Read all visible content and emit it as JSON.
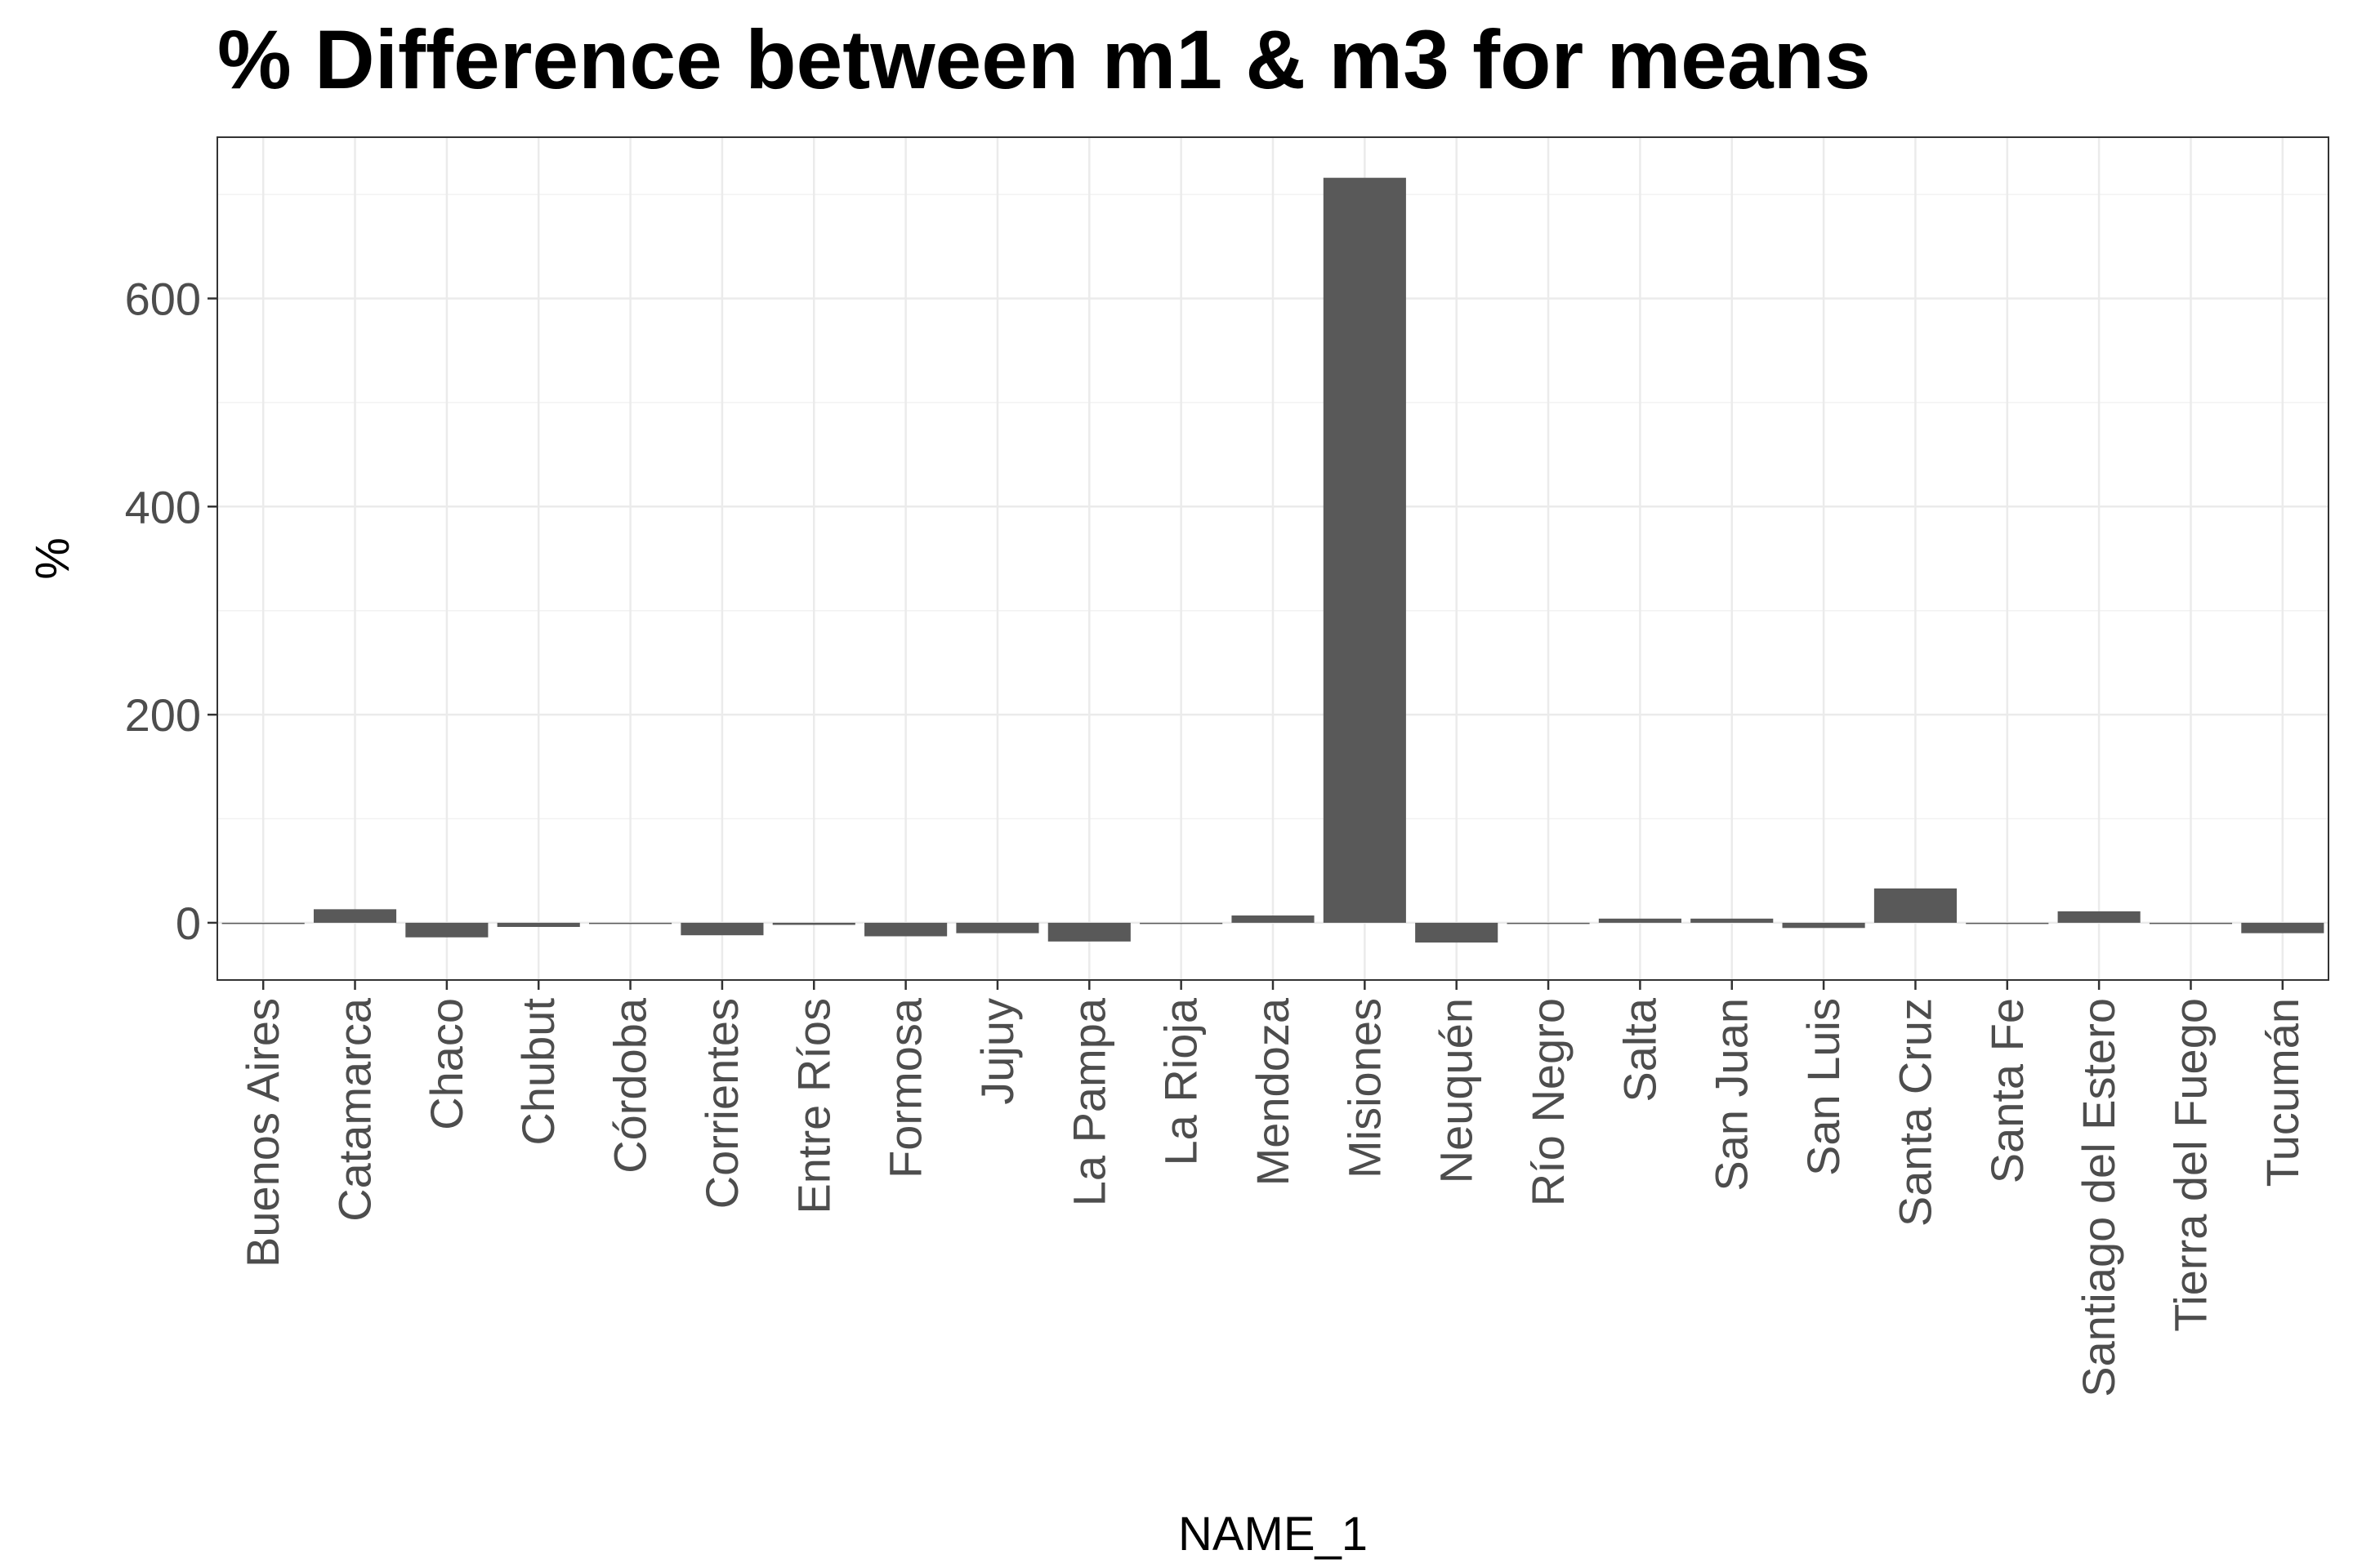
{
  "chart_data": {
    "type": "bar",
    "title": "% Difference between m1 & m3 for means",
    "xlabel": "NAME_1",
    "ylabel": "%",
    "ylim": [
      -55,
      755
    ],
    "yticks": [
      0,
      200,
      400,
      600
    ],
    "ytick_labels": [
      "0",
      "200",
      "400",
      "600"
    ],
    "grid": true,
    "bar_color": "#595959",
    "categories": [
      "Buenos Aires",
      "Catamarca",
      "Chaco",
      "Chubut",
      "Córdoba",
      "Corrientes",
      "Entre Ríos",
      "Formosa",
      "Jujuy",
      "La Pampa",
      "La Rioja",
      "Mendoza",
      "Misiones",
      "Neuquén",
      "Río Negro",
      "Salta",
      "San Juan",
      "San Luis",
      "Santa Cruz",
      "Santa Fe",
      "Santiago del Estero",
      "Tierra del Fuego",
      "Tucumán"
    ],
    "values": [
      -1,
      13,
      -14,
      -4,
      0,
      -12,
      -2,
      -13,
      -10,
      -18,
      0,
      7,
      716,
      -19,
      -1,
      4,
      4,
      -5,
      33,
      -1,
      11,
      0,
      -10
    ]
  }
}
